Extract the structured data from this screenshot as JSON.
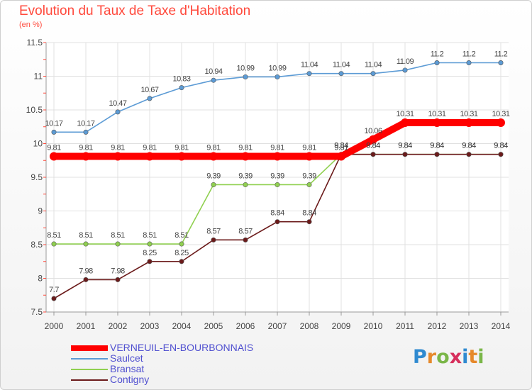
{
  "title": "Evolution du Taux de Taxe d'Habitation",
  "subtitle": "(en %)",
  "logo": {
    "text": "Proxiti",
    "letters": [
      "P",
      "r",
      "o",
      "x",
      "i",
      "t",
      "i"
    ],
    "colors": [
      "#2f8ad0",
      "#e6892b",
      "#7ab648",
      "#d62f5c",
      "#2f8ad0",
      "#e6892b",
      "#7ab648"
    ]
  },
  "chart_data": {
    "type": "line",
    "x": [
      2000,
      2001,
      2002,
      2003,
      2004,
      2005,
      2006,
      2007,
      2008,
      2009,
      2010,
      2011,
      2012,
      2013,
      2014
    ],
    "ylim": [
      7.5,
      11.5
    ],
    "yticks": [
      7.5,
      8,
      8.5,
      9,
      9.5,
      10,
      10.5,
      11,
      11.5
    ],
    "ytick_labels": [
      "7.5",
      "8",
      "8.5",
      "9",
      "9.5",
      "10",
      "10.5",
      "11",
      "11.5"
    ],
    "grid": true,
    "legend_position": "bottom-left",
    "series": [
      {
        "name": "VERNEUIL-EN-BOURBONNAIS",
        "color": "#ff0000",
        "thick": true,
        "values": [
          9.81,
          9.81,
          9.81,
          9.81,
          9.81,
          9.81,
          9.81,
          9.81,
          9.81,
          9.81,
          10.06,
          10.31,
          10.31,
          10.31,
          10.31
        ],
        "labels": [
          "9.81",
          "9.81",
          "9.81",
          "9.81",
          "9.81",
          "9.81",
          "9.81",
          "9.81",
          "9.81",
          "9.81",
          "10.06",
          "10.31",
          "10.31",
          "10.31",
          "10.31"
        ]
      },
      {
        "name": "Saulcet",
        "color": "#5c9bd5",
        "values": [
          10.17,
          10.17,
          10.47,
          10.67,
          10.83,
          10.94,
          10.99,
          10.99,
          11.04,
          11.04,
          11.04,
          11.09,
          11.2,
          11.2,
          11.2
        ],
        "labels": [
          "10.17",
          "10.17",
          "10.47",
          "10.67",
          "10.83",
          "10.94",
          "10.99",
          "10.99",
          "11.04",
          "11.04",
          "11.04",
          "11.09",
          "11.2",
          "11.2",
          "11.2"
        ]
      },
      {
        "name": "Bransat",
        "color": "#90d050",
        "values": [
          8.51,
          8.51,
          8.51,
          8.51,
          8.51,
          9.39,
          9.39,
          9.39,
          9.39,
          9.84,
          9.84,
          9.84,
          9.84,
          9.84,
          9.84
        ],
        "labels": [
          "8.51",
          "8.51",
          "8.51",
          "8.51",
          "8.51",
          "9.39",
          "9.39",
          "9.39",
          "9.39",
          "9.84",
          "9.84",
          "9.84",
          "9.84",
          "9.84",
          "9.84"
        ]
      },
      {
        "name": "Contigny",
        "color": "#6b1a1a",
        "values": [
          7.7,
          7.98,
          7.98,
          8.25,
          8.25,
          8.57,
          8.57,
          8.84,
          8.84,
          9.84,
          9.84,
          9.84,
          9.84,
          9.84,
          9.84
        ],
        "labels": [
          "7.7",
          "7.98",
          "7.98",
          "8.25",
          "8.25",
          "8.57",
          "8.57",
          "8.84",
          "8.84",
          "9.84",
          "9.84",
          "9.84",
          "9.84",
          "9.84",
          "9.84"
        ]
      }
    ]
  }
}
